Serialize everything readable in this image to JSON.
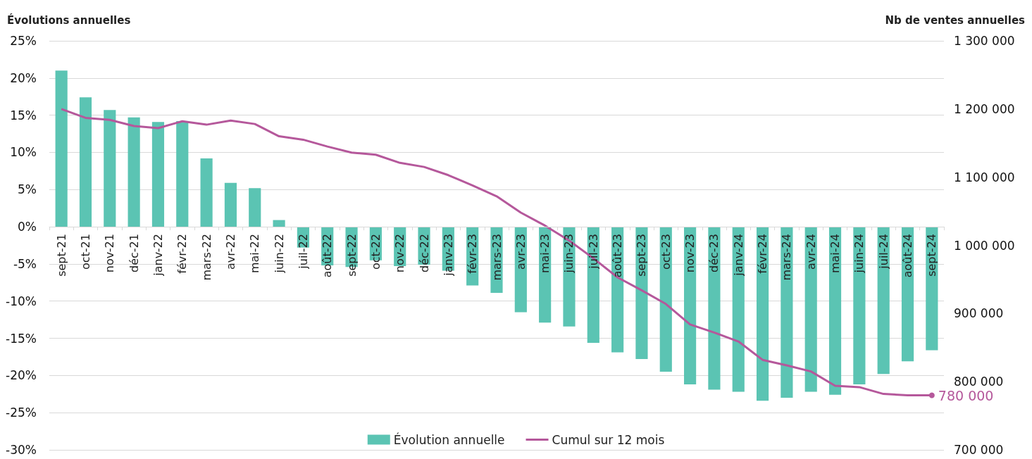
{
  "chart_data": {
    "type": "bar",
    "ylabel": "Évolutions annuelles",
    "y2label": "Nb de ventes annuelles",
    "categories": [
      "sept-21",
      "oct-21",
      "nov-21",
      "déc-21",
      "janv-22",
      "févr-22",
      "mars-22",
      "avr-22",
      "mai-22",
      "juin-22",
      "juil-22",
      "août-22",
      "sept-22",
      "oct-22",
      "nov-22",
      "déc-22",
      "janv-23",
      "févr-23",
      "mars-23",
      "avr-23",
      "mai-23",
      "juin-23",
      "juil-23",
      "août-23",
      "sept-23",
      "oct-23",
      "nov-23",
      "déc-23",
      "janv-24",
      "févr-24",
      "mars-24",
      "avr-24",
      "mai-24",
      "juin-24",
      "juil-24",
      "août-24",
      "sept-24"
    ],
    "series": [
      {
        "name": "Évolution annuelle",
        "color": "#5bc4b3",
        "values": [
          21.0,
          17.4,
          15.7,
          14.7,
          14.1,
          14.2,
          9.2,
          5.9,
          5.2,
          0.9,
          -2.8,
          -5.2,
          -5.4,
          -4.5,
          -5.3,
          -5.1,
          -5.9,
          -7.9,
          -8.9,
          -11.5,
          -12.9,
          -13.4,
          -15.6,
          -16.9,
          -17.8,
          -19.5,
          -21.2,
          -21.9,
          -22.2,
          -23.4,
          -23.0,
          -22.2,
          -22.6,
          -21.2,
          -19.8,
          -18.1,
          -16.6
        ]
      },
      {
        "name": "Cumul sur 12 mois",
        "type": "line",
        "axis": "y2",
        "color": "#b5589b",
        "values": [
          1200000,
          1187000,
          1184000,
          1175000,
          1172000,
          1182000,
          1177000,
          1183000,
          1178000,
          1160000,
          1155000,
          1145000,
          1136000,
          1133000,
          1121000,
          1115000,
          1103000,
          1088000,
          1072000,
          1048000,
          1029000,
          1007000,
          981000,
          953000,
          934000,
          914000,
          884000,
          872000,
          859000,
          832000,
          824000,
          815000,
          794000,
          792000,
          782000,
          780000,
          780000
        ],
        "value_labels": [
          null,
          null,
          null,
          null,
          null,
          null,
          null,
          null,
          null,
          null,
          null,
          null,
          null,
          null,
          null,
          null,
          null,
          null,
          null,
          null,
          null,
          null,
          null,
          null,
          null,
          null,
          null,
          null,
          null,
          null,
          null,
          null,
          null,
          null,
          null,
          null,
          "780 000"
        ]
      }
    ],
    "ylim": [
      -30,
      25
    ],
    "yticks": [
      {
        "value": -30,
        "label": "-30%"
      },
      {
        "value": -25,
        "label": "-25%"
      },
      {
        "value": -20,
        "label": "-20%"
      },
      {
        "value": -15,
        "label": "-15%"
      },
      {
        "value": -10,
        "label": "-10%"
      },
      {
        "value": -5,
        "label": "-5%"
      },
      {
        "value": 0,
        "label": "0%"
      },
      {
        "value": 5,
        "label": "5%"
      },
      {
        "value": 10,
        "label": "10%"
      },
      {
        "value": 15,
        "label": "15%"
      },
      {
        "value": 20,
        "label": "20%"
      },
      {
        "value": 25,
        "label": "25%"
      }
    ],
    "y2lim": [
      700000,
      1300000
    ],
    "y2ticks": [
      {
        "value": 700000,
        "label": "700 000"
      },
      {
        "value": 800000,
        "label": "800 000"
      },
      {
        "value": 900000,
        "label": "900 000"
      },
      {
        "value": 1000000,
        "label": "1 000 000"
      },
      {
        "value": 1100000,
        "label": "1 100 000"
      },
      {
        "value": 1200000,
        "label": "1 200 000"
      },
      {
        "value": 1300000,
        "label": "1 300 000"
      }
    ],
    "grid": "y",
    "legend": "bottom",
    "line_style": "solid"
  }
}
